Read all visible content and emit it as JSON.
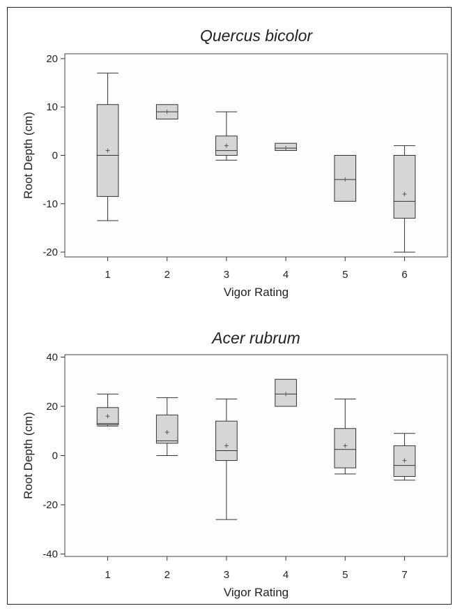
{
  "chart_data": [
    {
      "type": "box",
      "title": "Quercus bicolor",
      "xlabel": "Vigor Rating",
      "ylabel": "Root Depth (cm)",
      "ylim": [
        -21,
        21
      ],
      "yticks": [
        -20,
        -10,
        0,
        10,
        20
      ],
      "grid": false,
      "categories": [
        "1",
        "2",
        "3",
        "4",
        "5",
        "6"
      ],
      "boxes": [
        {
          "min": -13.5,
          "q1": -8.5,
          "median": 0,
          "q3": 10.5,
          "max": 17,
          "mean": 1
        },
        {
          "min": 7.5,
          "q1": 7.5,
          "median": 9,
          "q3": 10.5,
          "max": 10.5,
          "mean": 9
        },
        {
          "min": -1,
          "q1": 0,
          "median": 1,
          "q3": 4,
          "max": 9,
          "mean": 2
        },
        {
          "min": 1,
          "q1": 1,
          "median": 1.5,
          "q3": 2.5,
          "max": 2.5,
          "mean": 1.5
        },
        {
          "min": -9.5,
          "q1": -9.5,
          "median": -5,
          "q3": 0,
          "max": 0,
          "mean": -5
        },
        {
          "min": -20,
          "q1": -13,
          "median": -9.5,
          "q3": 0,
          "max": 2,
          "mean": -8
        }
      ]
    },
    {
      "type": "box",
      "title": "Acer rubrum",
      "xlabel": "Vigor Rating",
      "ylabel": "Root Depth (cm)",
      "ylim": [
        -41,
        41
      ],
      "yticks": [
        -40,
        -20,
        0,
        20,
        40
      ],
      "grid": false,
      "categories": [
        "1",
        "2",
        "3",
        "4",
        "5",
        "7"
      ],
      "boxes": [
        {
          "min": 12,
          "q1": 12.5,
          "median": 13,
          "q3": 19.5,
          "max": 25,
          "mean": 16
        },
        {
          "min": 0,
          "q1": 5,
          "median": 6,
          "q3": 16.5,
          "max": 23.5,
          "mean": 9.5
        },
        {
          "min": -26,
          "q1": -2,
          "median": 2,
          "q3": 14,
          "max": 23,
          "mean": 4
        },
        {
          "min": 20,
          "q1": 20,
          "median": 25,
          "q3": 31,
          "max": 31,
          "mean": 25
        },
        {
          "min": -7.5,
          "q1": -5,
          "median": 2.5,
          "q3": 11,
          "max": 23,
          "mean": 4
        },
        {
          "min": -10,
          "q1": -8.5,
          "median": -4,
          "q3": 4,
          "max": 9,
          "mean": -2
        }
      ]
    }
  ]
}
